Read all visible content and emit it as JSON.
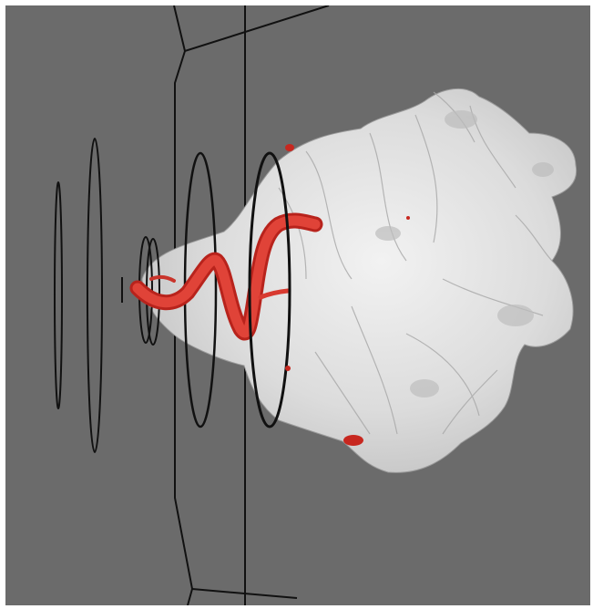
{
  "scene": {
    "background_color": "#6b6b6b",
    "border_color": "#ffffff",
    "surface_color": "#d9d9d9",
    "vessel_color": "#e0352b",
    "outline_color": "#111111",
    "description_icons": [
      "rendered-tumor-surface",
      "tortuous-vessel",
      "catheter-ring-outlines",
      "wireframe-box"
    ]
  }
}
